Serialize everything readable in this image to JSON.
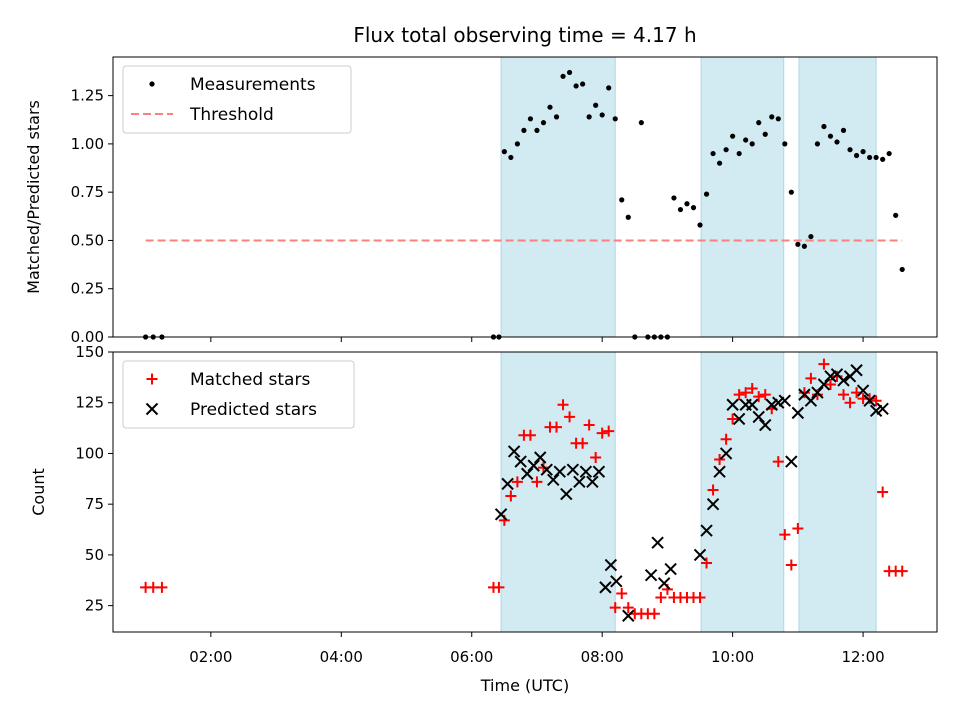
{
  "chart_data": {
    "title": "Flux total observing time = 4.17 h",
    "xlabel": "Time (UTC)",
    "x_tick_labels": [
      "02:00",
      "04:00",
      "06:00",
      "08:00",
      "10:00",
      "12:00"
    ],
    "x_ticks": [
      "02:00",
      "04:00",
      "06:00",
      "08:00",
      "10:00",
      "12:00"
    ],
    "xlim": [
      "00:30",
      "13:08"
    ],
    "shaded_intervals": [
      [
        "06:27",
        "08:12"
      ],
      [
        "09:31",
        "10:47"
      ],
      [
        "11:01",
        "12:12"
      ]
    ],
    "shade_color": "#add8e6",
    "panels": [
      {
        "type": "scatter",
        "ylabel": "Matched/Predicted stars",
        "ylim": [
          0,
          1.45
        ],
        "yticks": [
          0.0,
          0.25,
          0.5,
          0.75,
          1.0,
          1.25
        ],
        "y_tick_labels": [
          "0.00",
          "0.25",
          "0.50",
          "0.75",
          "1.00",
          "1.25"
        ],
        "legend_position": "top-left",
        "series": [
          {
            "name": "Measurements",
            "marker": "dot",
            "color": "#000000",
            "x": [
              "01:00",
              "01:07",
              "01:15",
              "06:20",
              "06:25",
              "06:30",
              "06:36",
              "06:42",
              "06:48",
              "06:54",
              "07:00",
              "07:06",
              "07:12",
              "07:18",
              "07:24",
              "07:30",
              "07:36",
              "07:42",
              "07:48",
              "07:54",
              "08:00",
              "08:06",
              "08:12",
              "08:18",
              "08:24",
              "08:30",
              "08:36",
              "08:42",
              "08:48",
              "08:54",
              "09:00",
              "09:06",
              "09:12",
              "09:18",
              "09:24",
              "09:30",
              "09:36",
              "09:42",
              "09:48",
              "09:54",
              "10:00",
              "10:06",
              "10:12",
              "10:18",
              "10:24",
              "10:30",
              "10:36",
              "10:42",
              "10:48",
              "10:54",
              "11:00",
              "11:06",
              "11:12",
              "11:18",
              "11:24",
              "11:30",
              "11:36",
              "11:42",
              "11:48",
              "11:54",
              "12:00",
              "12:06",
              "12:12",
              "12:18",
              "12:24",
              "12:30",
              "12:36"
            ],
            "y": [
              0.0,
              0.0,
              0.0,
              0.0,
              0.0,
              0.96,
              0.93,
              1.0,
              1.07,
              1.13,
              1.07,
              1.11,
              1.19,
              1.14,
              1.35,
              1.37,
              1.3,
              1.31,
              1.14,
              1.2,
              1.15,
              1.29,
              1.13,
              0.71,
              0.62,
              0.0,
              1.11,
              0.0,
              0.0,
              0.0,
              0.0,
              0.72,
              0.66,
              0.69,
              0.67,
              0.58,
              0.74,
              0.95,
              0.9,
              0.97,
              1.04,
              0.95,
              1.02,
              1.0,
              1.11,
              1.05,
              1.14,
              1.13,
              1.0,
              0.75,
              0.48,
              0.47,
              0.52,
              1.0,
              1.09,
              1.04,
              1.01,
              1.07,
              0.97,
              0.94,
              0.96,
              0.93,
              0.93,
              0.92,
              0.95,
              0.63,
              0.35
            ]
          },
          {
            "name": "Threshold",
            "marker": "dashed-line",
            "color": "#ff7f7f",
            "x": [
              "01:00",
              "12:36"
            ],
            "y": [
              0.5,
              0.5
            ]
          }
        ]
      },
      {
        "type": "scatter",
        "ylabel": "Count",
        "ylim": [
          12,
          150
        ],
        "yticks": [
          25,
          50,
          75,
          100,
          125,
          150
        ],
        "y_tick_labels": [
          "25",
          "50",
          "75",
          "100",
          "125",
          "150"
        ],
        "legend_position": "top-left",
        "series": [
          {
            "name": "Matched stars",
            "marker": "plus",
            "color": "#ff0000",
            "x": [
              "01:00",
              "01:07",
              "01:15",
              "06:20",
              "06:25",
              "06:30",
              "06:36",
              "06:42",
              "06:48",
              "06:54",
              "07:00",
              "07:06",
              "07:12",
              "07:18",
              "07:24",
              "07:30",
              "07:36",
              "07:42",
              "07:48",
              "07:54",
              "08:00",
              "08:06",
              "08:12",
              "08:18",
              "08:24",
              "08:30",
              "08:36",
              "08:42",
              "08:48",
              "08:54",
              "09:00",
              "09:06",
              "09:12",
              "09:18",
              "09:24",
              "09:30",
              "09:36",
              "09:42",
              "09:48",
              "09:54",
              "10:00",
              "10:06",
              "10:12",
              "10:18",
              "10:24",
              "10:30",
              "10:36",
              "10:42",
              "10:48",
              "10:54",
              "11:00",
              "11:06",
              "11:12",
              "11:18",
              "11:24",
              "11:30",
              "11:36",
              "11:42",
              "11:48",
              "11:54",
              "12:00",
              "12:06",
              "12:12",
              "12:18",
              "12:24",
              "12:30",
              "12:36"
            ],
            "y": [
              34,
              34,
              34,
              34,
              34,
              67,
              79,
              86,
              109,
              109,
              86,
              93,
              113,
              113,
              124,
              118,
              105,
              105,
              114,
              98,
              110,
              111,
              24,
              31,
              24,
              21,
              21,
              21,
              21,
              29,
              33,
              29,
              29,
              29,
              29,
              29,
              46,
              82,
              97,
              107,
              117,
              129,
              130,
              132,
              128,
              129,
              122,
              96,
              60,
              45,
              63,
              130,
              137,
              129,
              144,
              134,
              138,
              129,
              125,
              130,
              127,
              127,
              126,
              81,
              42,
              42,
              42
            ]
          },
          {
            "name": "Predicted stars",
            "marker": "x",
            "color": "#000000",
            "x": [
              "06:27",
              "06:33",
              "06:39",
              "06:45",
              "06:51",
              "06:57",
              "07:03",
              "07:09",
              "07:15",
              "07:21",
              "07:27",
              "07:33",
              "07:39",
              "07:45",
              "07:51",
              "07:57",
              "08:03",
              "08:08",
              "08:13",
              "08:24",
              "08:45",
              "08:51",
              "08:57",
              "09:03",
              "09:30",
              "09:36",
              "09:42",
              "09:48",
              "09:54",
              "10:00",
              "10:06",
              "10:12",
              "10:18",
              "10:24",
              "10:30",
              "10:36",
              "10:42",
              "10:48",
              "10:54",
              "11:00",
              "11:06",
              "11:12",
              "11:18",
              "11:24",
              "11:30",
              "11:36",
              "11:42",
              "11:48",
              "11:54",
              "12:00",
              "12:06",
              "12:12",
              "12:18"
            ],
            "y": [
              70,
              85,
              101,
              96,
              90,
              94,
              98,
              92,
              87,
              91,
              80,
              92,
              86,
              91,
              86,
              91,
              34,
              45,
              37,
              20,
              40,
              56,
              36,
              43,
              50,
              62,
              75,
              91,
              100,
              124,
              117,
              124,
              124,
              118,
              114,
              124,
              125,
              126,
              96,
              120,
              129,
              126,
              130,
              134,
              138,
              139,
              136,
              138,
              141,
              131,
              126,
              121,
              122
            ]
          }
        ]
      }
    ]
  }
}
